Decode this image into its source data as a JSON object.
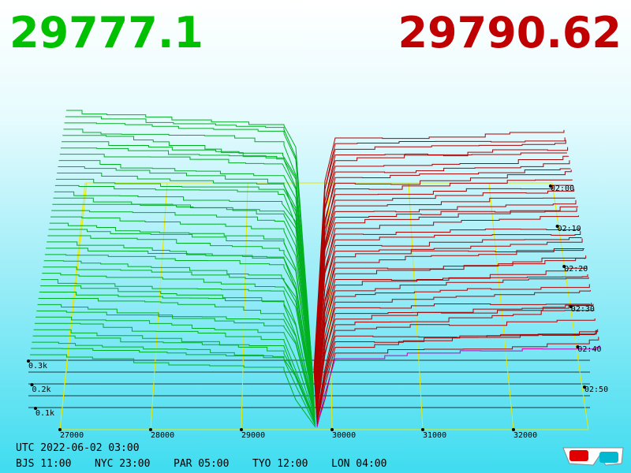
{
  "header": {
    "bid": "29777.1",
    "ask": "29790.62"
  },
  "price_axis": [
    "27000",
    "28000",
    "29000",
    "30000",
    "31000",
    "32000"
  ],
  "time_axis": [
    "02:00",
    "02:10",
    "02:20",
    "02:30",
    "02:40",
    "02:50"
  ],
  "depth_axis": [
    "0.3k",
    "0.2k",
    "0.1k"
  ],
  "footer": {
    "utc": "UTC 2022-06-02 03:00",
    "zones": [
      "BJS 11:00",
      "NYC 23:00",
      "PAR 05:00",
      "TYO 12:00",
      "LON 04:00"
    ]
  }
}
